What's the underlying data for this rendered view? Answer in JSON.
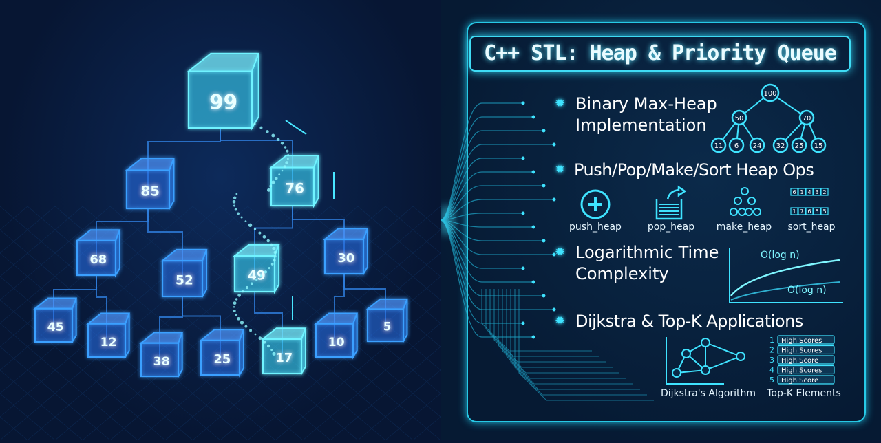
{
  "left_tree": {
    "root": "99",
    "level1": [
      "85",
      "76"
    ],
    "level2": [
      "68",
      "52",
      "49",
      "30"
    ],
    "level3": [
      "45",
      "12",
      "38",
      "25",
      "17",
      "10",
      "5"
    ]
  },
  "title": "C++ STL: Heap & Priority Queue",
  "sections": [
    {
      "heading": "Binary Max-Heap Implementation",
      "heap_nodes": [
        "100",
        "50",
        "70",
        "11",
        "6",
        "24",
        "32",
        "25",
        "15"
      ]
    },
    {
      "heading": "Push/Pop/Make/Sort Heap Ops",
      "ops": [
        {
          "icon": "plus-circle-icon",
          "label": "push_heap"
        },
        {
          "icon": "pop-tray-icon",
          "label": "pop_heap"
        },
        {
          "icon": "tree-icon",
          "label": "make_heap"
        },
        {
          "icon": "sort-array-icon",
          "label": "sort_heap",
          "top_row": [
            "6",
            "1",
            "4",
            "3",
            "2"
          ],
          "bottom_row": [
            "1",
            "7",
            "6",
            "5",
            "5"
          ]
        }
      ]
    },
    {
      "heading": "Logarithmic Time Complexity",
      "curve_labels": [
        "O(log n)",
        "O(log n)"
      ]
    },
    {
      "heading": "Dijkstra & Top-K Applications",
      "dijkstra_label": "Dijkstra's Algorithm",
      "topk_label": "Top-K Elements",
      "topk_items": [
        {
          "rank": "1",
          "text": "High Scores"
        },
        {
          "rank": "2",
          "text": "High Scores"
        },
        {
          "rank": "3",
          "text": "High Score"
        },
        {
          "rank": "4",
          "text": "High Scores"
        },
        {
          "rank": "5",
          "text": "High Score"
        }
      ]
    }
  ],
  "colors": {
    "accent": "#3fe3ff",
    "background": "#071633",
    "highlight": "#7ff6ff"
  }
}
